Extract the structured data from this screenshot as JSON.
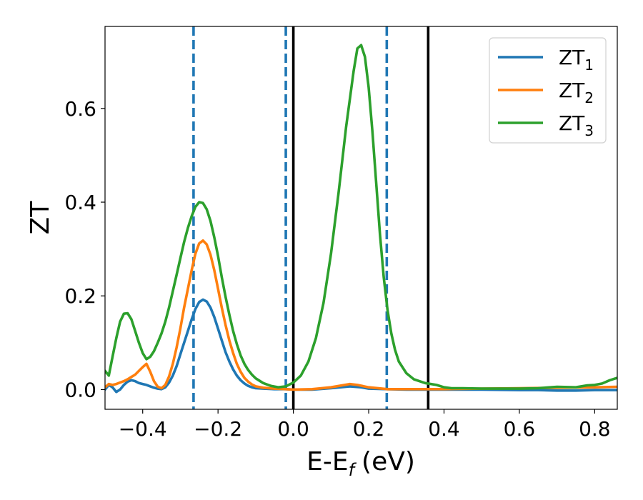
{
  "chart_data": {
    "type": "line",
    "xlabel": "E-E",
    "xlabel_sub": "f",
    "xlabel_unit": "(eV)",
    "ylabel": "ZT",
    "xlim": [
      -0.5,
      0.86
    ],
    "ylim": [
      -0.042,
      0.775
    ],
    "xticks": [
      -0.4,
      -0.2,
      0.0,
      0.2,
      0.4,
      0.6,
      0.8
    ],
    "xtick_labels": [
      "−0.4",
      "−0.2",
      "0.0",
      "0.2",
      "0.4",
      "0.6",
      "0.8"
    ],
    "yticks": [
      0.0,
      0.2,
      0.4,
      0.6
    ],
    "ytick_labels": [
      "0.0",
      "0.2",
      "0.4",
      "0.6"
    ],
    "grid": false,
    "legend_position": "top-right",
    "vlines": [
      {
        "x": -0.265,
        "style": "dashed",
        "color": "#1f77b4"
      },
      {
        "x": -0.02,
        "style": "dashed",
        "color": "#1f77b4"
      },
      {
        "x": 0.248,
        "style": "dashed",
        "color": "#1f77b4"
      },
      {
        "x": 0.0,
        "style": "solid",
        "color": "#000000"
      },
      {
        "x": 0.358,
        "style": "solid",
        "color": "#000000"
      }
    ],
    "series": [
      {
        "name": "ZT",
        "name_sub": "1",
        "color": "#1f77b4",
        "points": [
          [
            -0.5,
            0.0
          ],
          [
            -0.49,
            0.01
          ],
          [
            -0.48,
            0.005
          ],
          [
            -0.47,
            -0.005
          ],
          [
            -0.46,
            0.0
          ],
          [
            -0.45,
            0.01
          ],
          [
            -0.44,
            0.017
          ],
          [
            -0.43,
            0.02
          ],
          [
            -0.42,
            0.018
          ],
          [
            -0.41,
            0.014
          ],
          [
            -0.4,
            0.012
          ],
          [
            -0.39,
            0.01
          ],
          [
            -0.38,
            0.007
          ],
          [
            -0.37,
            0.004
          ],
          [
            -0.36,
            0.002
          ],
          [
            -0.35,
            0.001
          ],
          [
            -0.34,
            0.005
          ],
          [
            -0.33,
            0.015
          ],
          [
            -0.32,
            0.03
          ],
          [
            -0.31,
            0.05
          ],
          [
            -0.3,
            0.075
          ],
          [
            -0.29,
            0.1
          ],
          [
            -0.28,
            0.125
          ],
          [
            -0.27,
            0.15
          ],
          [
            -0.26,
            0.172
          ],
          [
            -0.25,
            0.187
          ],
          [
            -0.24,
            0.192
          ],
          [
            -0.23,
            0.188
          ],
          [
            -0.22,
            0.175
          ],
          [
            -0.21,
            0.155
          ],
          [
            -0.2,
            0.13
          ],
          [
            -0.19,
            0.105
          ],
          [
            -0.18,
            0.08
          ],
          [
            -0.17,
            0.06
          ],
          [
            -0.16,
            0.043
          ],
          [
            -0.15,
            0.03
          ],
          [
            -0.14,
            0.02
          ],
          [
            -0.13,
            0.013
          ],
          [
            -0.12,
            0.008
          ],
          [
            -0.11,
            0.005
          ],
          [
            -0.1,
            0.003
          ],
          [
            -0.08,
            0.002
          ],
          [
            -0.05,
            0.001
          ],
          [
            -0.02,
            0.001
          ],
          [
            0.0,
            0.0
          ],
          [
            0.05,
            0.0
          ],
          [
            0.1,
            0.003
          ],
          [
            0.15,
            0.007
          ],
          [
            0.18,
            0.005
          ],
          [
            0.2,
            0.002
          ],
          [
            0.25,
            0.001
          ],
          [
            0.3,
            0.0
          ],
          [
            0.4,
            0.0
          ],
          [
            0.5,
            0.0
          ],
          [
            0.6,
            -0.001
          ],
          [
            0.65,
            -0.001
          ],
          [
            0.7,
            -0.002
          ],
          [
            0.75,
            -0.002
          ],
          [
            0.8,
            -0.001
          ],
          [
            0.86,
            -0.001
          ]
        ]
      },
      {
        "name": "ZT",
        "name_sub": "2",
        "color": "#ff7f0e",
        "points": [
          [
            -0.5,
            0.005
          ],
          [
            -0.49,
            0.012
          ],
          [
            -0.48,
            0.01
          ],
          [
            -0.47,
            0.012
          ],
          [
            -0.46,
            0.015
          ],
          [
            -0.45,
            0.018
          ],
          [
            -0.44,
            0.022
          ],
          [
            -0.43,
            0.027
          ],
          [
            -0.42,
            0.032
          ],
          [
            -0.41,
            0.04
          ],
          [
            -0.4,
            0.048
          ],
          [
            -0.39,
            0.055
          ],
          [
            -0.38,
            0.038
          ],
          [
            -0.37,
            0.018
          ],
          [
            -0.36,
            0.006
          ],
          [
            -0.35,
            0.003
          ],
          [
            -0.34,
            0.01
          ],
          [
            -0.33,
            0.028
          ],
          [
            -0.32,
            0.055
          ],
          [
            -0.31,
            0.09
          ],
          [
            -0.3,
            0.13
          ],
          [
            -0.29,
            0.175
          ],
          [
            -0.28,
            0.215
          ],
          [
            -0.27,
            0.255
          ],
          [
            -0.26,
            0.29
          ],
          [
            -0.25,
            0.312
          ],
          [
            -0.24,
            0.318
          ],
          [
            -0.23,
            0.31
          ],
          [
            -0.22,
            0.288
          ],
          [
            -0.21,
            0.255
          ],
          [
            -0.2,
            0.215
          ],
          [
            -0.19,
            0.175
          ],
          [
            -0.18,
            0.138
          ],
          [
            -0.17,
            0.105
          ],
          [
            -0.16,
            0.078
          ],
          [
            -0.15,
            0.055
          ],
          [
            -0.14,
            0.038
          ],
          [
            -0.13,
            0.025
          ],
          [
            -0.12,
            0.017
          ],
          [
            -0.11,
            0.011
          ],
          [
            -0.1,
            0.007
          ],
          [
            -0.08,
            0.004
          ],
          [
            -0.05,
            0.002
          ],
          [
            -0.02,
            0.001
          ],
          [
            0.0,
            0.0
          ],
          [
            0.05,
            0.001
          ],
          [
            0.1,
            0.005
          ],
          [
            0.15,
            0.012
          ],
          [
            0.17,
            0.01
          ],
          [
            0.2,
            0.005
          ],
          [
            0.25,
            0.001
          ],
          [
            0.3,
            0.001
          ],
          [
            0.4,
            0.001
          ],
          [
            0.5,
            0.002
          ],
          [
            0.6,
            0.003
          ],
          [
            0.7,
            0.004
          ],
          [
            0.8,
            0.005
          ],
          [
            0.86,
            0.006
          ]
        ]
      },
      {
        "name": "ZT",
        "name_sub": "3",
        "color": "#2ca02c",
        "points": [
          [
            -0.5,
            0.04
          ],
          [
            -0.49,
            0.03
          ],
          [
            -0.48,
            0.07
          ],
          [
            -0.47,
            0.11
          ],
          [
            -0.46,
            0.145
          ],
          [
            -0.45,
            0.162
          ],
          [
            -0.44,
            0.163
          ],
          [
            -0.43,
            0.15
          ],
          [
            -0.42,
            0.125
          ],
          [
            -0.41,
            0.1
          ],
          [
            -0.4,
            0.078
          ],
          [
            -0.39,
            0.065
          ],
          [
            -0.38,
            0.07
          ],
          [
            -0.37,
            0.082
          ],
          [
            -0.36,
            0.1
          ],
          [
            -0.35,
            0.12
          ],
          [
            -0.34,
            0.145
          ],
          [
            -0.33,
            0.175
          ],
          [
            -0.32,
            0.21
          ],
          [
            -0.31,
            0.245
          ],
          [
            -0.3,
            0.28
          ],
          [
            -0.29,
            0.315
          ],
          [
            -0.28,
            0.345
          ],
          [
            -0.27,
            0.37
          ],
          [
            -0.26,
            0.39
          ],
          [
            -0.25,
            0.4
          ],
          [
            -0.24,
            0.398
          ],
          [
            -0.23,
            0.385
          ],
          [
            -0.22,
            0.36
          ],
          [
            -0.21,
            0.325
          ],
          [
            -0.2,
            0.285
          ],
          [
            -0.19,
            0.24
          ],
          [
            -0.18,
            0.198
          ],
          [
            -0.17,
            0.16
          ],
          [
            -0.16,
            0.125
          ],
          [
            -0.15,
            0.097
          ],
          [
            -0.14,
            0.073
          ],
          [
            -0.13,
            0.055
          ],
          [
            -0.12,
            0.042
          ],
          [
            -0.11,
            0.032
          ],
          [
            -0.1,
            0.024
          ],
          [
            -0.08,
            0.014
          ],
          [
            -0.06,
            0.008
          ],
          [
            -0.04,
            0.005
          ],
          [
            -0.02,
            0.007
          ],
          [
            0.0,
            0.015
          ],
          [
            0.02,
            0.03
          ],
          [
            0.04,
            0.06
          ],
          [
            0.06,
            0.11
          ],
          [
            0.08,
            0.185
          ],
          [
            0.1,
            0.29
          ],
          [
            0.12,
            0.42
          ],
          [
            0.14,
            0.56
          ],
          [
            0.16,
            0.68
          ],
          [
            0.17,
            0.728
          ],
          [
            0.18,
            0.735
          ],
          [
            0.19,
            0.71
          ],
          [
            0.2,
            0.645
          ],
          [
            0.21,
            0.55
          ],
          [
            0.22,
            0.44
          ],
          [
            0.23,
            0.33
          ],
          [
            0.24,
            0.24
          ],
          [
            0.25,
            0.17
          ],
          [
            0.26,
            0.12
          ],
          [
            0.27,
            0.085
          ],
          [
            0.28,
            0.06
          ],
          [
            0.3,
            0.035
          ],
          [
            0.32,
            0.022
          ],
          [
            0.35,
            0.014
          ],
          [
            0.38,
            0.01
          ],
          [
            0.4,
            0.005
          ],
          [
            0.42,
            0.003
          ],
          [
            0.45,
            0.003
          ],
          [
            0.5,
            0.002
          ],
          [
            0.55,
            0.002
          ],
          [
            0.6,
            0.002
          ],
          [
            0.65,
            0.003
          ],
          [
            0.7,
            0.006
          ],
          [
            0.75,
            0.005
          ],
          [
            0.78,
            0.009
          ],
          [
            0.8,
            0.01
          ],
          [
            0.82,
            0.013
          ],
          [
            0.84,
            0.02
          ],
          [
            0.86,
            0.025
          ]
        ]
      }
    ]
  }
}
